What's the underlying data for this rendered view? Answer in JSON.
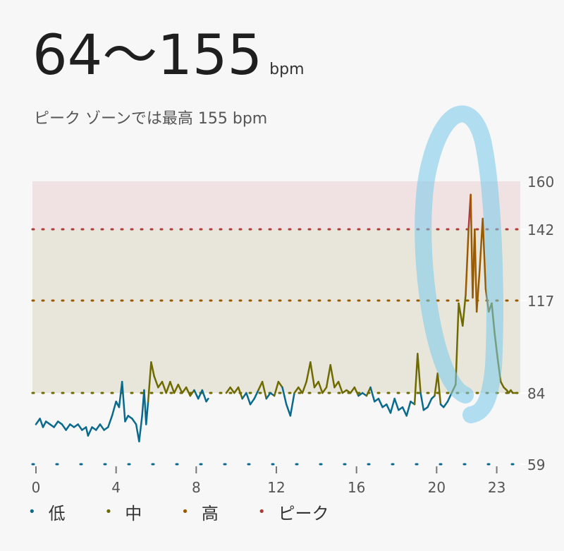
{
  "header": {
    "range": "64〜155",
    "unit": "bpm",
    "subtitle": "ピーク ゾーンでは最高 155 bpm"
  },
  "chart_data": {
    "type": "line",
    "x_ticks": [
      "0",
      "4",
      "8",
      "12",
      "16",
      "20",
      "23"
    ],
    "x_tick_values": [
      0,
      4,
      8,
      12,
      16,
      20,
      23
    ],
    "y_ticks": [
      "59",
      "84",
      "117",
      "142",
      "160"
    ],
    "xlim": [
      0,
      24
    ],
    "ylim": [
      59,
      160
    ],
    "zones": [
      {
        "name": "低",
        "from": 59,
        "to": 84,
        "color": "#0b6a8c"
      },
      {
        "name": "中",
        "from": 84,
        "to": 117,
        "color": "#6f6a00"
      },
      {
        "name": "高",
        "from": 117,
        "to": 142,
        "color": "#9a5a00"
      },
      {
        "name": "ピーク",
        "from": 142,
        "to": 160,
        "color": "#b03a35"
      }
    ],
    "legend": [
      "低",
      "中",
      "高",
      "ピーク"
    ],
    "series": [
      {
        "values": [
          [
            0.0,
            73
          ],
          [
            0.2,
            75
          ],
          [
            0.35,
            72
          ],
          [
            0.5,
            74
          ],
          [
            0.7,
            73
          ],
          [
            0.9,
            72
          ],
          [
            1.1,
            74
          ],
          [
            1.3,
            73
          ],
          [
            1.5,
            71
          ],
          [
            1.7,
            73
          ],
          [
            1.9,
            72
          ],
          [
            2.1,
            73
          ],
          [
            2.3,
            71
          ],
          [
            2.5,
            72
          ],
          [
            2.6,
            69
          ],
          [
            2.8,
            72
          ],
          [
            3.0,
            71
          ],
          [
            3.2,
            73
          ],
          [
            3.4,
            71
          ],
          [
            3.6,
            72
          ],
          [
            3.8,
            76
          ],
          [
            4.0,
            81
          ],
          [
            4.15,
            79
          ],
          [
            4.3,
            88
          ],
          [
            4.45,
            74
          ],
          [
            4.6,
            76
          ],
          [
            4.8,
            75
          ],
          [
            5.0,
            73
          ],
          [
            5.15,
            67
          ],
          [
            5.3,
            76
          ],
          [
            5.4,
            85
          ],
          [
            5.5,
            73
          ],
          [
            5.6,
            81
          ],
          [
            5.75,
            95
          ],
          [
            5.9,
            90
          ],
          [
            6.1,
            86
          ],
          [
            6.3,
            88
          ],
          [
            6.5,
            84
          ],
          [
            6.7,
            88
          ],
          [
            6.9,
            84
          ],
          [
            7.1,
            87
          ],
          [
            7.3,
            84
          ],
          [
            7.5,
            86
          ],
          [
            7.7,
            83
          ],
          [
            7.9,
            85
          ],
          [
            8.1,
            82
          ],
          [
            8.3,
            85
          ],
          [
            8.5,
            81
          ],
          [
            8.6,
            82
          ],
          [
            9.5,
            84
          ],
          [
            9.7,
            86
          ],
          [
            9.9,
            84
          ],
          [
            10.1,
            86
          ],
          [
            10.3,
            82
          ],
          [
            10.5,
            84
          ],
          [
            10.7,
            80
          ],
          [
            10.9,
            82
          ],
          [
            11.1,
            85
          ],
          [
            11.3,
            88
          ],
          [
            11.5,
            82
          ],
          [
            11.7,
            84
          ],
          [
            11.9,
            83
          ],
          [
            12.1,
            88
          ],
          [
            12.3,
            86
          ],
          [
            12.5,
            80
          ],
          [
            12.7,
            76
          ],
          [
            12.9,
            84
          ],
          [
            13.1,
            86
          ],
          [
            13.3,
            84
          ],
          [
            13.5,
            88
          ],
          [
            13.7,
            95
          ],
          [
            13.9,
            86
          ],
          [
            14.1,
            88
          ],
          [
            14.3,
            84
          ],
          [
            14.5,
            86
          ],
          [
            14.7,
            94
          ],
          [
            14.9,
            86
          ],
          [
            15.1,
            88
          ],
          [
            15.3,
            84
          ],
          [
            15.5,
            85
          ],
          [
            15.7,
            84
          ],
          [
            15.9,
            86
          ],
          [
            16.1,
            83
          ],
          [
            16.3,
            84
          ],
          [
            16.5,
            83
          ],
          [
            16.7,
            86
          ],
          [
            16.9,
            81
          ],
          [
            17.1,
            82
          ],
          [
            17.3,
            79
          ],
          [
            17.5,
            80
          ],
          [
            17.7,
            77
          ],
          [
            17.9,
            82
          ],
          [
            18.1,
            78
          ],
          [
            18.3,
            79
          ],
          [
            18.5,
            76
          ],
          [
            18.7,
            81
          ],
          [
            18.9,
            80
          ],
          [
            19.05,
            98
          ],
          [
            19.2,
            84
          ],
          [
            19.35,
            78
          ],
          [
            19.55,
            79
          ],
          [
            19.75,
            82
          ],
          [
            19.9,
            83
          ],
          [
            20.05,
            91
          ],
          [
            20.2,
            80
          ],
          [
            20.35,
            79
          ],
          [
            20.55,
            81
          ],
          [
            20.75,
            84
          ],
          [
            20.95,
            87
          ],
          [
            21.1,
            116
          ],
          [
            21.3,
            108
          ],
          [
            21.45,
            119
          ],
          [
            21.6,
            143
          ],
          [
            21.7,
            155
          ],
          [
            21.8,
            118
          ],
          [
            21.9,
            142
          ],
          [
            22.0,
            113
          ],
          [
            22.15,
            128
          ],
          [
            22.3,
            146
          ],
          [
            22.45,
            121
          ],
          [
            22.6,
            113
          ],
          [
            22.75,
            116
          ],
          [
            22.9,
            105
          ],
          [
            23.05,
            96
          ],
          [
            23.2,
            88
          ],
          [
            23.35,
            86
          ],
          [
            23.5,
            85
          ],
          [
            23.6,
            84
          ],
          [
            23.7,
            85
          ],
          [
            23.8,
            84
          ],
          [
            23.9,
            84
          ]
        ]
      }
    ]
  }
}
